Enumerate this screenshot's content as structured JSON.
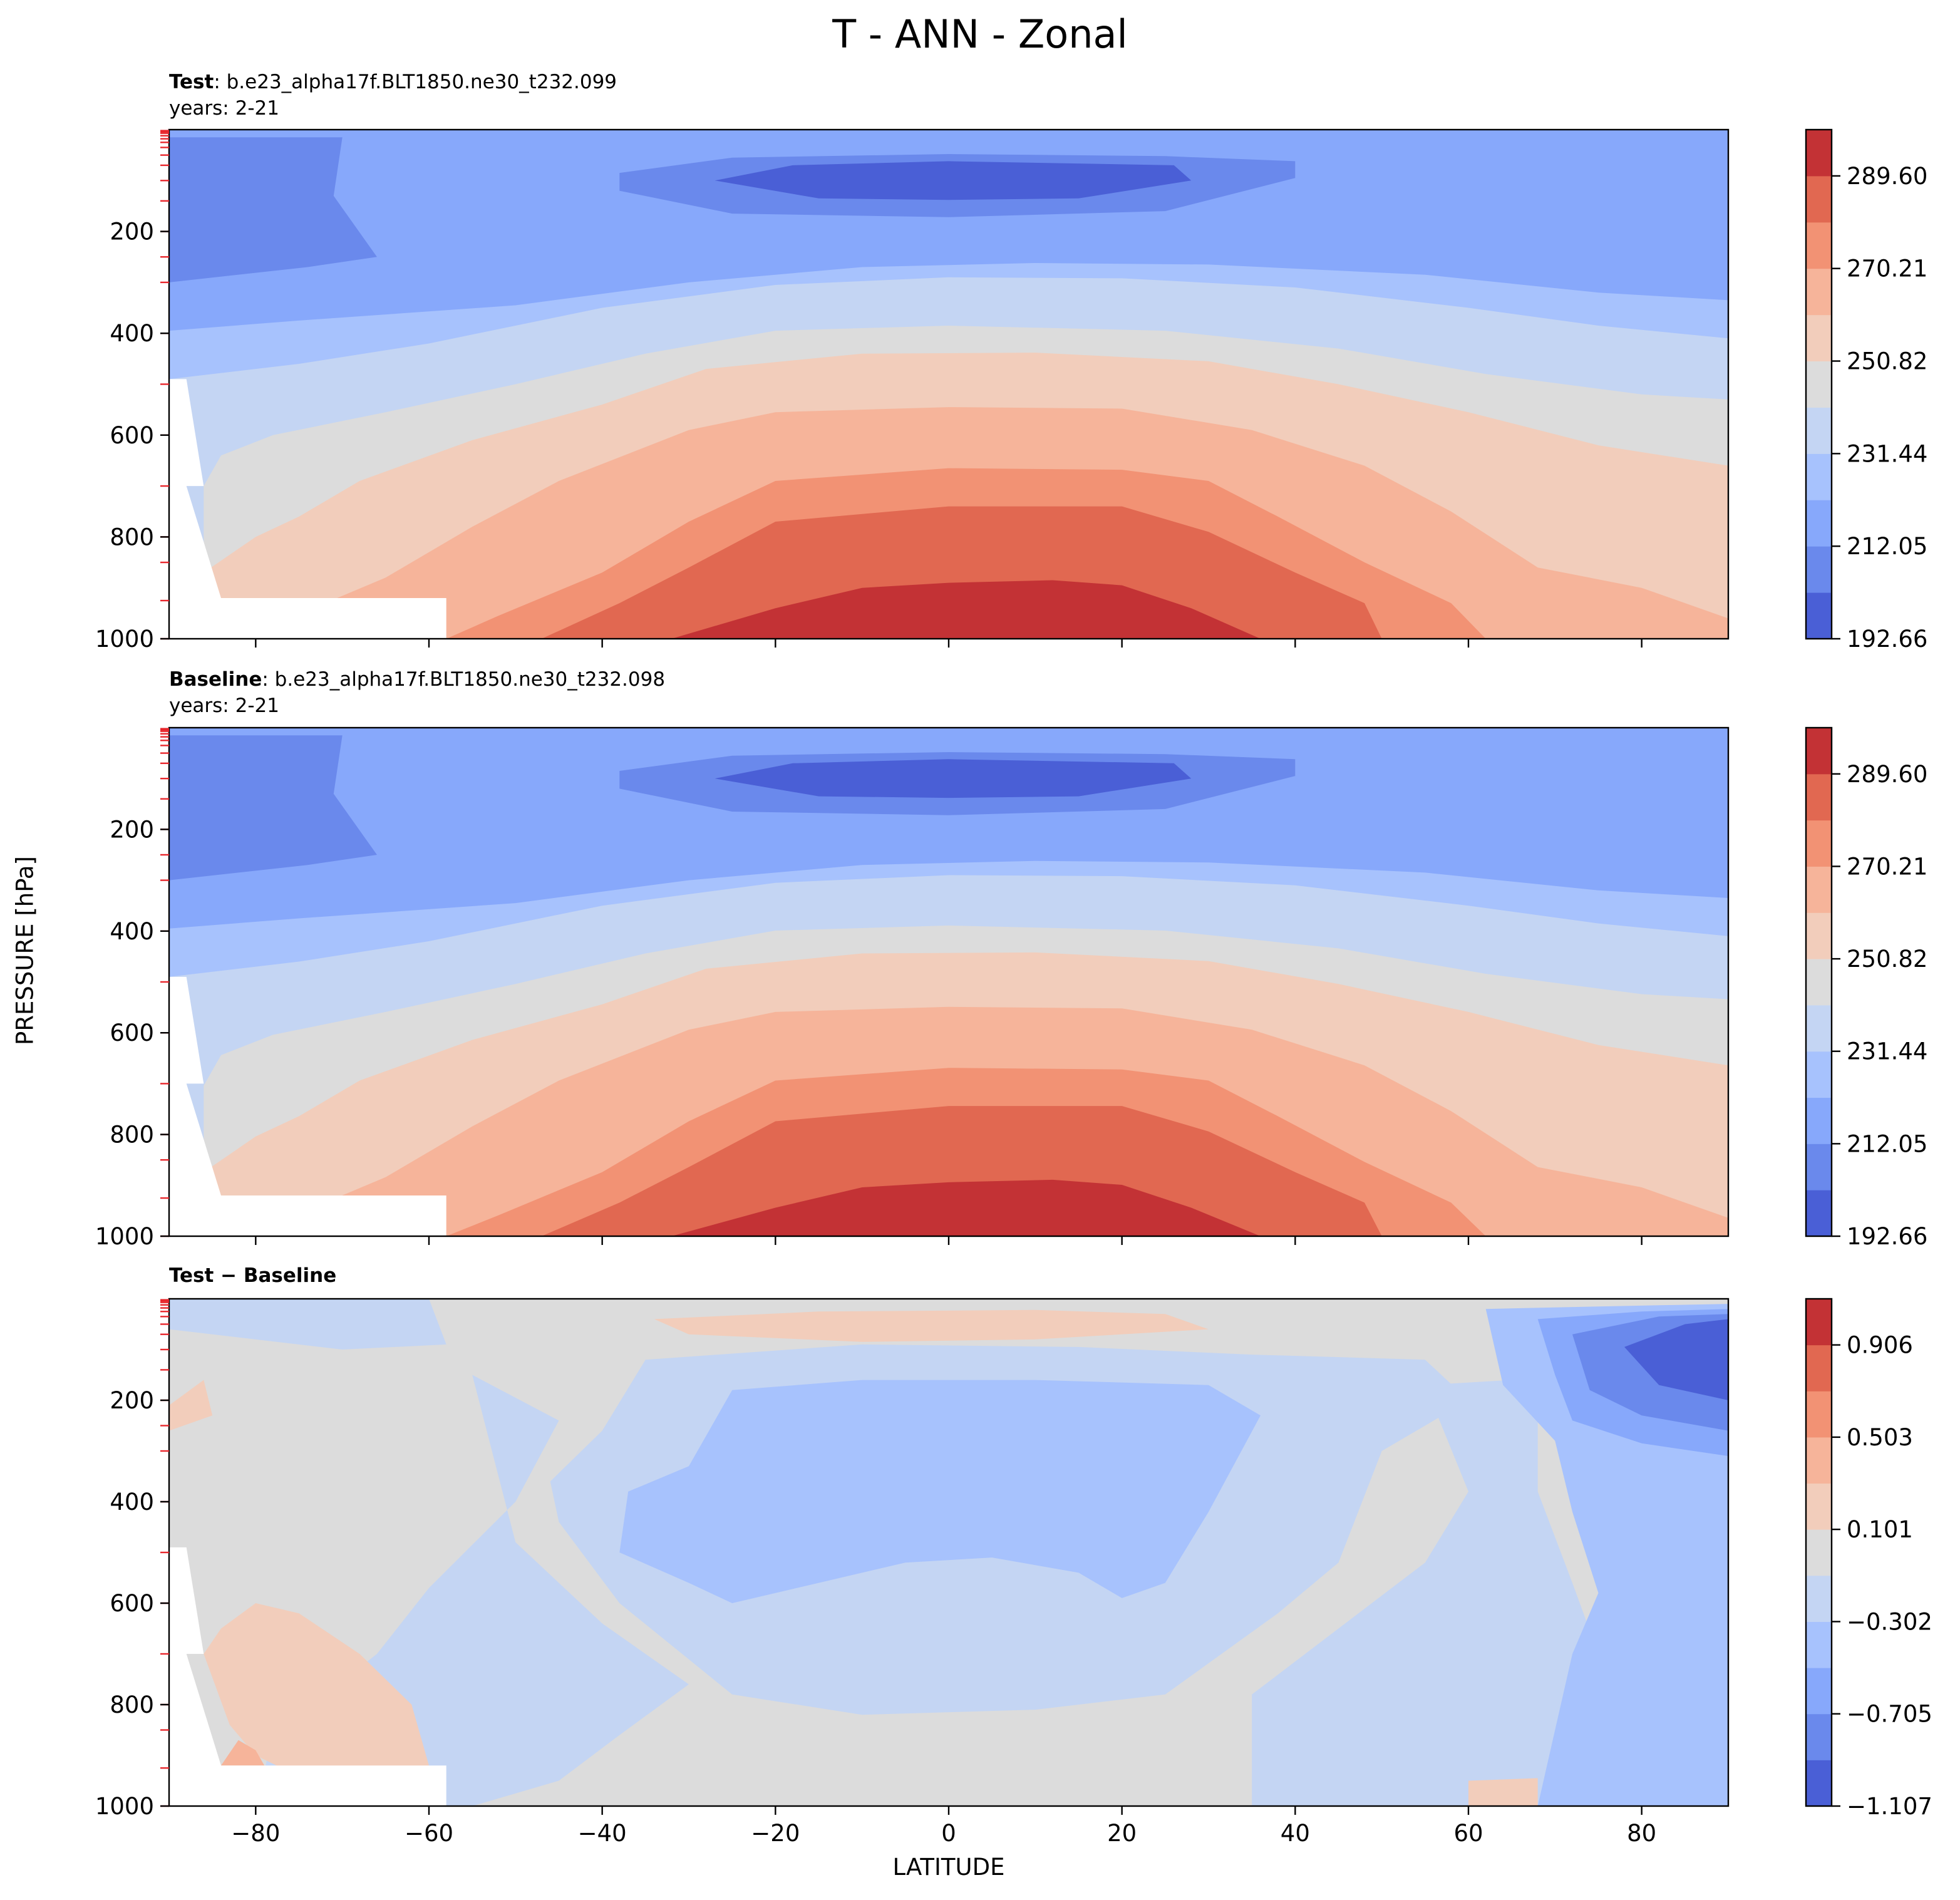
{
  "title": "T - ANN - Zonal",
  "ylabel": "PRESSURE [hPa]",
  "xlabel": "LATITUDE",
  "panels": [
    {
      "bold": "Test",
      "rest": ": b.e23_alpha17f.BLT1850.ne30_t232.099",
      "years": "years: 2-21"
    },
    {
      "bold": "Baseline",
      "rest": ": b.e23_alpha17f.BLT1850.ne30_t232.098",
      "years": "years: 2-21"
    },
    {
      "bold": "Test − Baseline",
      "rest": "",
      "years": ""
    }
  ],
  "chart_data": [
    {
      "type": "contourf",
      "title": "Test",
      "xlabel": "LATITUDE",
      "ylabel": "PRESSURE [hPa]",
      "xlim": [
        -90,
        90
      ],
      "ylim": [
        1000,
        0
      ],
      "xticks": [
        -80,
        -60,
        -40,
        -20,
        0,
        20,
        40,
        60,
        80
      ],
      "yticks": [
        200,
        400,
        600,
        800,
        1000
      ],
      "colorbar_ticks": [
        "192.66",
        "212.05",
        "231.44",
        "250.82",
        "270.21",
        "289.60"
      ],
      "levels": [
        192.66,
        202.35,
        212.05,
        221.74,
        231.44,
        241.13,
        250.82,
        260.52,
        270.21,
        279.91,
        289.6,
        299.3
      ],
      "colors": [
        "#4a5fd6",
        "#6a89ec",
        "#87a8fb",
        "#a7c2fd",
        "#c4d5f3",
        "#dcdcdc",
        "#f2cdbb",
        "#f6b49a",
        "#f29274",
        "#e16851",
        "#c33235"
      ]
    },
    {
      "type": "contourf",
      "title": "Baseline",
      "xlabel": "LATITUDE",
      "ylabel": "PRESSURE [hPa]",
      "xlim": [
        -90,
        90
      ],
      "ylim": [
        1000,
        0
      ],
      "xticks": [
        -80,
        -60,
        -40,
        -20,
        0,
        20,
        40,
        60,
        80
      ],
      "yticks": [
        200,
        400,
        600,
        800,
        1000
      ],
      "colorbar_ticks": [
        "192.66",
        "212.05",
        "231.44",
        "250.82",
        "270.21",
        "289.60"
      ],
      "levels": [
        192.66,
        202.35,
        212.05,
        221.74,
        231.44,
        241.13,
        250.82,
        260.52,
        270.21,
        279.91,
        289.6,
        299.3
      ],
      "colors": [
        "#4a5fd6",
        "#6a89ec",
        "#87a8fb",
        "#a7c2fd",
        "#c4d5f3",
        "#dcdcdc",
        "#f2cdbb",
        "#f6b49a",
        "#f29274",
        "#e16851",
        "#c33235"
      ]
    },
    {
      "type": "contourf",
      "title": "Test − Baseline",
      "xlabel": "LATITUDE",
      "ylabel": "PRESSURE [hPa]",
      "xlim": [
        -90,
        90
      ],
      "ylim": [
        1000,
        0
      ],
      "xticks": [
        -80,
        -60,
        -40,
        -20,
        0,
        20,
        40,
        60,
        80
      ],
      "yticks": [
        200,
        400,
        600,
        800,
        1000
      ],
      "colorbar_ticks": [
        "−1.107",
        "−0.705",
        "−0.302",
        "0.101",
        "0.503",
        "0.906"
      ],
      "levels": [
        -1.107,
        -0.906,
        -0.705,
        -0.503,
        -0.302,
        -0.101,
        0.101,
        0.302,
        0.503,
        0.705,
        0.906,
        1.107
      ],
      "colors": [
        "#4a5fd6",
        "#6a89ec",
        "#87a8fb",
        "#a7c2fd",
        "#c4d5f3",
        "#dcdcdc",
        "#f2cdbb",
        "#f6b49a",
        "#f29274",
        "#e16851",
        "#c33235"
      ]
    }
  ]
}
